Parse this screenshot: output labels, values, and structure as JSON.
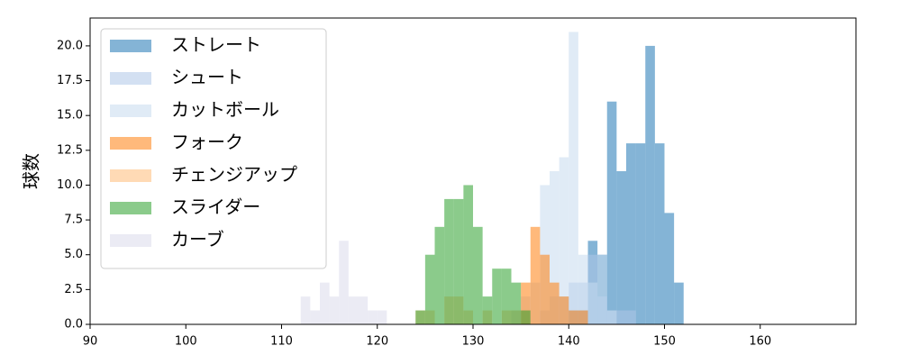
{
  "chart_data": {
    "type": "histogram",
    "y_label": "球数",
    "xlim": [
      90,
      170
    ],
    "ylim": [
      0,
      22
    ],
    "xticks": [
      90,
      100,
      110,
      120,
      130,
      140,
      150,
      160
    ],
    "yticks": [
      {
        "value": 0,
        "label": "0.0"
      },
      {
        "value": 2.5,
        "label": "2.5"
      },
      {
        "value": 5,
        "label": "5.0"
      },
      {
        "value": 7.5,
        "label": "7.5"
      },
      {
        "value": 10,
        "label": "10.0"
      },
      {
        "value": 12.5,
        "label": "12.5"
      },
      {
        "value": 15,
        "label": "15.0"
      },
      {
        "value": 17.5,
        "label": "17.5"
      },
      {
        "value": 20,
        "label": "20.0"
      }
    ],
    "legend": "upper left",
    "series": [
      {
        "name": "ストレート",
        "color": "#1f77b4",
        "bins": [
          140,
          141,
          142,
          143,
          144,
          145,
          146,
          147,
          148,
          149,
          150,
          151,
          152
        ],
        "values": [
          1,
          1,
          6,
          5,
          16,
          11,
          13,
          13,
          20,
          13,
          8,
          3
        ]
      },
      {
        "name": "シュート",
        "color": "#aec7e8",
        "bins": [
          137,
          138,
          139,
          140,
          141,
          142,
          143,
          144,
          145,
          146,
          147
        ],
        "values": [
          1,
          2,
          2,
          3,
          3,
          5,
          2,
          1,
          1,
          1
        ]
      },
      {
        "name": "カットボール",
        "color": "#c6dbef",
        "bins": [
          134,
          135,
          136,
          137,
          138,
          139,
          140,
          141,
          142,
          143,
          144,
          145
        ],
        "values": [
          1,
          2,
          3,
          10,
          11,
          12,
          21,
          5,
          3,
          5,
          1
        ]
      },
      {
        "name": "フォーク",
        "color": "#ff7f0e",
        "bins": [
          135,
          136,
          137,
          138,
          139,
          140,
          141,
          142
        ],
        "values": [
          3,
          7,
          5,
          3,
          2,
          1,
          1
        ]
      },
      {
        "name": "チェンジアップ",
        "color": "#ffbb78",
        "bins": [
          124,
          125,
          126,
          127,
          128,
          129,
          130,
          131,
          132,
          133,
          134,
          135
        ],
        "values": [
          1,
          1,
          0,
          2,
          2,
          1,
          0,
          1,
          0,
          1,
          1
        ]
      },
      {
        "name": "スライダー",
        "color": "#2ca02c",
        "bins": [
          124,
          125,
          126,
          127,
          128,
          129,
          130,
          131,
          132,
          133,
          134,
          135,
          136
        ],
        "values": [
          1,
          5,
          7,
          9,
          9,
          10,
          7,
          2,
          4,
          4,
          3,
          1
        ]
      },
      {
        "name": "カーブ",
        "color": "#dadaeb",
        "bins": [
          112,
          113,
          114,
          115,
          116,
          117,
          118,
          119,
          120,
          121
        ],
        "values": [
          2,
          1,
          3,
          2,
          6,
          2,
          2,
          1,
          1
        ]
      }
    ]
  }
}
